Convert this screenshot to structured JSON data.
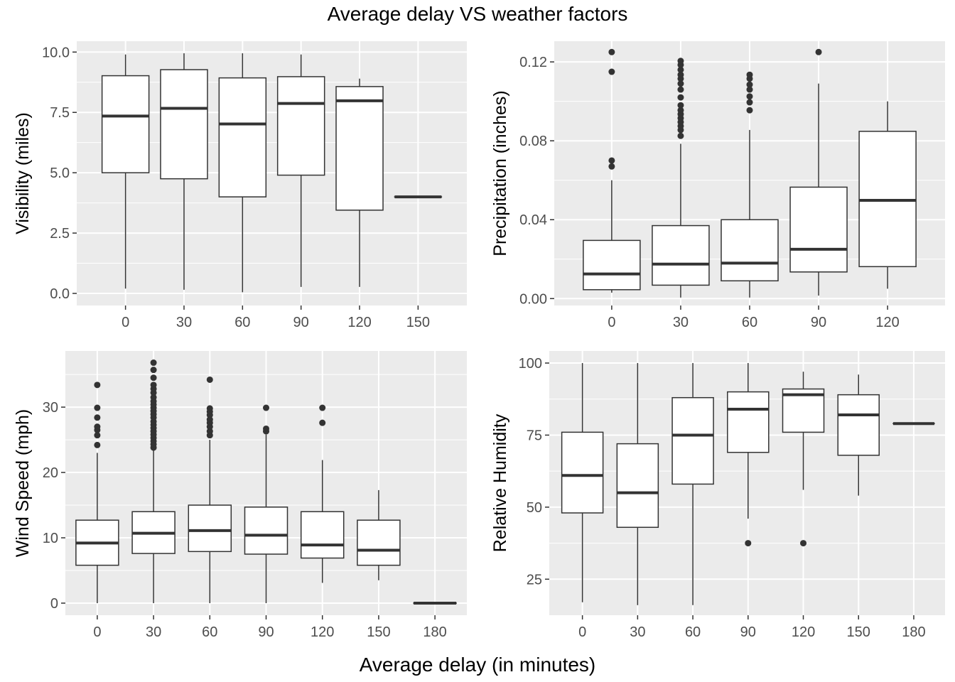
{
  "title": "Average delay VS weather factors",
  "xlabel": "Average delay (in minutes)",
  "colors": {
    "panel": "#ebebeb",
    "grid": "#ffffff",
    "box_line": "#333333",
    "box_fill": "#ffffff",
    "outlier": "#333333"
  },
  "chart_data": [
    {
      "type": "boxplot",
      "ylabel": "Visibility (miles)",
      "x_categories": [
        0,
        30,
        60,
        90,
        120,
        150
      ],
      "xlim": [
        -25,
        175
      ],
      "ylim": [
        -0.5,
        10.45
      ],
      "y_ticks": [
        0.0,
        2.5,
        5.0,
        7.5,
        10.0
      ],
      "y_tick_labels": [
        "0.0",
        "2.5",
        "5.0",
        "7.5",
        "10.0"
      ],
      "boxes": [
        {
          "x": 0,
          "low": 0.2,
          "q1": 5.0,
          "median": 7.35,
          "q3": 9.02,
          "high": 9.9,
          "outliers": []
        },
        {
          "x": 30,
          "low": 0.15,
          "q1": 4.75,
          "median": 7.67,
          "q3": 9.27,
          "high": 9.95,
          "outliers": []
        },
        {
          "x": 60,
          "low": 0.05,
          "q1": 4.0,
          "median": 7.02,
          "q3": 8.93,
          "high": 9.95,
          "outliers": []
        },
        {
          "x": 90,
          "low": 0.27,
          "q1": 4.9,
          "median": 7.87,
          "q3": 8.98,
          "high": 9.9,
          "outliers": []
        },
        {
          "x": 120,
          "low": 0.27,
          "q1": 3.45,
          "median": 7.98,
          "q3": 8.57,
          "high": 8.9,
          "outliers": []
        },
        {
          "x": 150,
          "low": 4.0,
          "q1": 4.0,
          "median": 4.0,
          "q3": 4.0,
          "high": 4.0,
          "outliers": []
        }
      ]
    },
    {
      "type": "boxplot",
      "ylabel": "Precipitation (inches)",
      "x_categories": [
        0,
        30,
        60,
        90,
        120
      ],
      "xlim": [
        -25,
        145
      ],
      "ylim": [
        -0.0035,
        0.1305
      ],
      "y_ticks": [
        0.0,
        0.04,
        0.08,
        0.12
      ],
      "y_tick_labels": [
        "0.00",
        "0.04",
        "0.08",
        "0.12"
      ],
      "boxes": [
        {
          "x": 0,
          "low": 0.003,
          "q1": 0.0045,
          "median": 0.0125,
          "q3": 0.0295,
          "high": 0.06,
          "outliers": [
            0.067,
            0.07,
            0.115,
            0.125
          ]
        },
        {
          "x": 30,
          "low": 0.0005,
          "q1": 0.0068,
          "median": 0.0175,
          "q3": 0.037,
          "high": 0.0785,
          "outliers": [
            0.0825,
            0.0855,
            0.0875,
            0.0895,
            0.0915,
            0.0935,
            0.0955,
            0.098,
            0.102,
            0.106,
            0.109,
            0.1115,
            0.1135,
            0.116,
            0.1185,
            0.1205
          ]
        },
        {
          "x": 60,
          "low": 0.0005,
          "q1": 0.009,
          "median": 0.018,
          "q3": 0.04,
          "high": 0.0855,
          "outliers": [
            0.0955,
            0.0995,
            0.1025,
            0.106,
            0.1085,
            0.1115,
            0.1135
          ]
        },
        {
          "x": 90,
          "low": 0.0015,
          "q1": 0.0135,
          "median": 0.025,
          "q3": 0.0565,
          "high": 0.109,
          "outliers": [
            0.125
          ]
        },
        {
          "x": 120,
          "low": 0.005,
          "q1": 0.0162,
          "median": 0.0498,
          "q3": 0.0848,
          "high": 0.1,
          "outliers": []
        }
      ]
    },
    {
      "type": "boxplot",
      "ylabel": "Wind Speed (mph)",
      "x_categories": [
        0,
        30,
        60,
        90,
        120,
        150,
        180
      ],
      "xlim": [
        -17,
        197
      ],
      "ylim": [
        -1.85,
        38.6
      ],
      "y_ticks": [
        0,
        10,
        20,
        30
      ],
      "y_tick_labels": [
        "0",
        "10",
        "20",
        "30"
      ],
      "boxes": [
        {
          "x": 0,
          "low": 0.0,
          "q1": 5.8,
          "median": 9.2,
          "q3": 12.7,
          "high": 23.0,
          "outliers": [
            24.2,
            25.7,
            26.5,
            27.0,
            28.4,
            29.9,
            33.4
          ]
        },
        {
          "x": 30,
          "low": 0.0,
          "q1": 7.6,
          "median": 10.7,
          "q3": 14.0,
          "high": 23.4,
          "outliers": [
            23.8,
            24.3,
            24.8,
            25.3,
            25.8,
            26.3,
            26.8,
            27.3,
            27.8,
            28.4,
            28.9,
            29.4,
            29.9,
            30.4,
            30.9,
            31.5,
            32.2,
            32.8,
            33.4,
            34.5,
            35.7,
            36.8
          ]
        },
        {
          "x": 60,
          "low": 0.0,
          "q1": 7.9,
          "median": 11.1,
          "q3": 15.0,
          "high": 25.0,
          "outliers": [
            25.7,
            26.3,
            27.0,
            27.6,
            28.1,
            28.8,
            29.3,
            29.8,
            34.2
          ]
        },
        {
          "x": 90,
          "low": 0.0,
          "q1": 7.5,
          "median": 10.4,
          "q3": 14.7,
          "high": 25.8,
          "outliers": [
            26.3,
            26.7,
            29.9
          ]
        },
        {
          "x": 120,
          "low": 3.1,
          "q1": 6.9,
          "median": 8.9,
          "q3": 14.0,
          "high": 21.9,
          "outliers": [
            27.6,
            29.9
          ]
        },
        {
          "x": 150,
          "low": 3.5,
          "q1": 5.8,
          "median": 8.1,
          "q3": 12.7,
          "high": 17.3,
          "outliers": []
        },
        {
          "x": 180,
          "low": 0.0,
          "q1": 0.0,
          "median": 0.0,
          "q3": 0.0,
          "high": 0.0,
          "outliers": []
        }
      ]
    },
    {
      "type": "boxplot",
      "ylabel": "Relative Humidity",
      "x_categories": [
        0,
        30,
        60,
        90,
        120,
        150,
        180
      ],
      "xlim": [
        -18,
        197
      ],
      "ylim": [
        12.5,
        104.2
      ],
      "y_ticks": [
        25,
        50,
        75,
        100
      ],
      "y_tick_labels": [
        "25",
        "50",
        "75",
        "100"
      ],
      "boxes": [
        {
          "x": 0,
          "low": 17.0,
          "q1": 48.0,
          "median": 61.0,
          "q3": 76.0,
          "high": 100.0,
          "outliers": []
        },
        {
          "x": 30,
          "low": 16.0,
          "q1": 43.0,
          "median": 55.0,
          "q3": 72.0,
          "high": 100.0,
          "outliers": []
        },
        {
          "x": 60,
          "low": 16.0,
          "q1": 58.0,
          "median": 75.0,
          "q3": 88.0,
          "high": 100.0,
          "outliers": []
        },
        {
          "x": 90,
          "low": 46.0,
          "q1": 69.0,
          "median": 84.0,
          "q3": 90.0,
          "high": 100.0,
          "outliers": [
            37.5
          ]
        },
        {
          "x": 120,
          "low": 56.0,
          "q1": 76.0,
          "median": 89.0,
          "q3": 91.0,
          "high": 97.0,
          "outliers": [
            37.5
          ]
        },
        {
          "x": 150,
          "low": 54.0,
          "q1": 68.0,
          "median": 82.0,
          "q3": 89.0,
          "high": 96.0,
          "outliers": []
        },
        {
          "x": 180,
          "low": 79.0,
          "q1": 79.0,
          "median": 79.0,
          "q3": 79.0,
          "high": 79.0,
          "outliers": []
        }
      ]
    }
  ]
}
